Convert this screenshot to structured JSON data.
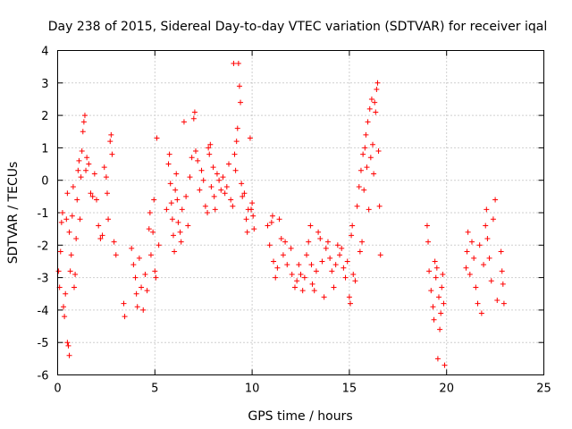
{
  "chart_data": {
    "type": "scatter",
    "title": "Day 238 of 2015, Sidereal Day-to-day VTEC variation (SDTVAR) for receiver iqal",
    "xlabel": "GPS time / hours",
    "ylabel": "SDTVAR / TECUs",
    "xlim": [
      0,
      25
    ],
    "ylim": [
      -6,
      4
    ],
    "xticks": [
      0,
      5,
      10,
      15,
      20,
      25
    ],
    "yticks": [
      -6,
      -5,
      -4,
      -3,
      -2,
      -1,
      0,
      1,
      2,
      3,
      4
    ],
    "grid": true,
    "marker": "+",
    "color": "#ff0000",
    "series": [
      {
        "name": "SDTVAR",
        "points": [
          [
            0.05,
            -2.8
          ],
          [
            0.1,
            -3.3
          ],
          [
            0.15,
            -2.2
          ],
          [
            0.2,
            -1.3
          ],
          [
            0.25,
            -1.0
          ],
          [
            0.3,
            -3.9
          ],
          [
            0.35,
            -4.2
          ],
          [
            0.4,
            -3.5
          ],
          [
            0.45,
            -1.2
          ],
          [
            0.5,
            -0.4
          ],
          [
            0.5,
            -5.0
          ],
          [
            0.55,
            -5.1
          ],
          [
            0.6,
            -5.4
          ],
          [
            0.6,
            -1.6
          ],
          [
            0.65,
            -2.8
          ],
          [
            0.7,
            -2.3
          ],
          [
            0.75,
            -1.1
          ],
          [
            0.8,
            -0.2
          ],
          [
            0.85,
            -3.3
          ],
          [
            0.9,
            -2.9
          ],
          [
            0.95,
            -1.8
          ],
          [
            1.0,
            -0.6
          ],
          [
            1.05,
            0.3
          ],
          [
            1.1,
            0.6
          ],
          [
            1.15,
            -1.2
          ],
          [
            1.2,
            0.1
          ],
          [
            1.25,
            0.9
          ],
          [
            1.3,
            1.5
          ],
          [
            1.35,
            1.8
          ],
          [
            1.4,
            2.0
          ],
          [
            1.45,
            0.3
          ],
          [
            1.5,
            0.7
          ],
          [
            1.6,
            0.5
          ],
          [
            1.7,
            -0.4
          ],
          [
            1.8,
            -0.5
          ],
          [
            1.9,
            0.2
          ],
          [
            2.0,
            -0.6
          ],
          [
            2.1,
            -1.4
          ],
          [
            2.2,
            -1.8
          ],
          [
            2.3,
            -1.7
          ],
          [
            2.4,
            0.4
          ],
          [
            2.5,
            0.1
          ],
          [
            2.55,
            -0.4
          ],
          [
            2.6,
            -1.2
          ],
          [
            2.7,
            1.2
          ],
          [
            2.75,
            1.4
          ],
          [
            2.8,
            0.8
          ],
          [
            2.9,
            -1.9
          ],
          [
            3.0,
            -2.3
          ],
          [
            3.4,
            -3.8
          ],
          [
            3.45,
            -4.2
          ],
          [
            3.8,
            -2.1
          ],
          [
            3.9,
            -2.6
          ],
          [
            4.0,
            -3.0
          ],
          [
            4.05,
            -3.5
          ],
          [
            4.1,
            -3.9
          ],
          [
            4.2,
            -2.4
          ],
          [
            4.3,
            -3.3
          ],
          [
            4.4,
            -4.0
          ],
          [
            4.5,
            -2.9
          ],
          [
            4.6,
            -3.4
          ],
          [
            4.7,
            -1.5
          ],
          [
            4.75,
            -1.0
          ],
          [
            4.8,
            -2.3
          ],
          [
            4.9,
            -1.6
          ],
          [
            4.95,
            -0.6
          ],
          [
            5.0,
            -2.8
          ],
          [
            5.05,
            -3.0
          ],
          [
            5.1,
            1.3
          ],
          [
            5.2,
            -2.0
          ],
          [
            5.6,
            -0.9
          ],
          [
            5.7,
            0.5
          ],
          [
            5.75,
            0.8
          ],
          [
            5.8,
            -0.1
          ],
          [
            5.85,
            -0.7
          ],
          [
            5.9,
            -1.2
          ],
          [
            5.95,
            -1.7
          ],
          [
            6.0,
            -2.2
          ],
          [
            6.05,
            -0.3
          ],
          [
            6.1,
            0.2
          ],
          [
            6.15,
            -0.6
          ],
          [
            6.2,
            -1.3
          ],
          [
            6.3,
            -1.6
          ],
          [
            6.35,
            -1.9
          ],
          [
            6.4,
            -0.9
          ],
          [
            6.5,
            1.8
          ],
          [
            6.6,
            -0.5
          ],
          [
            6.7,
            -1.4
          ],
          [
            6.8,
            0.1
          ],
          [
            6.9,
            0.7
          ],
          [
            7.0,
            1.9
          ],
          [
            7.05,
            2.1
          ],
          [
            7.1,
            0.9
          ],
          [
            7.2,
            0.6
          ],
          [
            7.3,
            -0.3
          ],
          [
            7.4,
            0.3
          ],
          [
            7.5,
            0.0
          ],
          [
            7.6,
            -0.8
          ],
          [
            7.7,
            -1.0
          ],
          [
            7.75,
            1.0
          ],
          [
            7.8,
            0.8
          ],
          [
            7.85,
            1.1
          ],
          [
            7.9,
            -0.2
          ],
          [
            8.0,
            0.4
          ],
          [
            8.05,
            -0.5
          ],
          [
            8.1,
            -0.9
          ],
          [
            8.2,
            0.2
          ],
          [
            8.3,
            0.0
          ],
          [
            8.4,
            -0.3
          ],
          [
            8.5,
            0.1
          ],
          [
            8.6,
            -0.4
          ],
          [
            8.7,
            -0.2
          ],
          [
            8.8,
            0.5
          ],
          [
            8.9,
            -0.6
          ],
          [
            9.0,
            -0.8
          ],
          [
            9.05,
            3.6
          ],
          [
            9.1,
            0.8
          ],
          [
            9.15,
            0.3
          ],
          [
            9.2,
            1.2
          ],
          [
            9.25,
            1.6
          ],
          [
            9.3,
            3.6
          ],
          [
            9.35,
            2.9
          ],
          [
            9.4,
            2.4
          ],
          [
            9.45,
            -0.1
          ],
          [
            9.5,
            -0.5
          ],
          [
            9.6,
            -0.4
          ],
          [
            9.7,
            -1.2
          ],
          [
            9.75,
            -1.6
          ],
          [
            9.8,
            -0.9
          ],
          [
            9.9,
            1.3
          ],
          [
            9.95,
            -0.9
          ],
          [
            10.0,
            -0.7
          ],
          [
            10.05,
            -1.1
          ],
          [
            10.1,
            -1.5
          ],
          [
            10.8,
            -1.4
          ],
          [
            10.9,
            -2.0
          ],
          [
            11.0,
            -1.3
          ],
          [
            11.05,
            -1.1
          ],
          [
            11.1,
            -2.5
          ],
          [
            11.2,
            -3.0
          ],
          [
            11.3,
            -2.7
          ],
          [
            11.4,
            -1.2
          ],
          [
            11.5,
            -1.8
          ],
          [
            11.6,
            -2.3
          ],
          [
            11.7,
            -1.9
          ],
          [
            11.8,
            -2.6
          ],
          [
            12.0,
            -2.1
          ],
          [
            12.05,
            -2.9
          ],
          [
            12.2,
            -3.3
          ],
          [
            12.3,
            -3.1
          ],
          [
            12.4,
            -2.6
          ],
          [
            12.5,
            -2.9
          ],
          [
            12.6,
            -3.4
          ],
          [
            12.7,
            -3.0
          ],
          [
            12.8,
            -2.3
          ],
          [
            12.9,
            -1.9
          ],
          [
            13.0,
            -1.4
          ],
          [
            13.05,
            -2.6
          ],
          [
            13.1,
            -3.2
          ],
          [
            13.2,
            -3.4
          ],
          [
            13.3,
            -2.8
          ],
          [
            13.4,
            -1.6
          ],
          [
            13.5,
            -1.8
          ],
          [
            13.6,
            -2.5
          ],
          [
            13.7,
            -3.6
          ],
          [
            13.8,
            -2.1
          ],
          [
            13.9,
            -1.9
          ],
          [
            14.0,
            -2.4
          ],
          [
            14.1,
            -2.8
          ],
          [
            14.2,
            -3.3
          ],
          [
            14.3,
            -2.6
          ],
          [
            14.4,
            -2.0
          ],
          [
            14.5,
            -2.3
          ],
          [
            14.6,
            -2.1
          ],
          [
            14.7,
            -2.7
          ],
          [
            14.8,
            -3.0
          ],
          [
            14.9,
            -2.5
          ],
          [
            15.0,
            -3.6
          ],
          [
            15.05,
            -3.8
          ],
          [
            15.1,
            -1.7
          ],
          [
            15.15,
            -1.4
          ],
          [
            15.2,
            -2.9
          ],
          [
            15.3,
            -3.1
          ],
          [
            15.4,
            -0.8
          ],
          [
            15.5,
            -0.2
          ],
          [
            15.55,
            -2.2
          ],
          [
            15.6,
            0.3
          ],
          [
            15.65,
            -1.9
          ],
          [
            15.7,
            0.8
          ],
          [
            15.75,
            -0.3
          ],
          [
            15.8,
            1.0
          ],
          [
            15.85,
            1.4
          ],
          [
            15.9,
            0.4
          ],
          [
            15.95,
            1.8
          ],
          [
            16.0,
            -0.9
          ],
          [
            16.05,
            2.2
          ],
          [
            16.1,
            0.7
          ],
          [
            16.15,
            2.5
          ],
          [
            16.2,
            1.1
          ],
          [
            16.25,
            0.2
          ],
          [
            16.3,
            2.4
          ],
          [
            16.35,
            2.1
          ],
          [
            16.4,
            2.8
          ],
          [
            16.45,
            3.0
          ],
          [
            16.5,
            0.9
          ],
          [
            16.55,
            -0.8
          ],
          [
            16.6,
            -2.3
          ],
          [
            19.0,
            -1.4
          ],
          [
            19.05,
            -1.9
          ],
          [
            19.1,
            -2.8
          ],
          [
            19.2,
            -3.4
          ],
          [
            19.3,
            -3.9
          ],
          [
            19.35,
            -4.3
          ],
          [
            19.4,
            -2.5
          ],
          [
            19.45,
            -3.0
          ],
          [
            19.5,
            -2.7
          ],
          [
            19.55,
            -5.5
          ],
          [
            19.6,
            -3.6
          ],
          [
            19.65,
            -4.6
          ],
          [
            19.7,
            -4.1
          ],
          [
            19.75,
            -3.3
          ],
          [
            19.8,
            -2.9
          ],
          [
            19.85,
            -3.8
          ],
          [
            19.9,
            -5.7
          ],
          [
            21.0,
            -2.7
          ],
          [
            21.05,
            -2.2
          ],
          [
            21.1,
            -1.6
          ],
          [
            21.2,
            -2.9
          ],
          [
            21.3,
            -1.9
          ],
          [
            21.4,
            -2.4
          ],
          [
            21.5,
            -3.3
          ],
          [
            21.6,
            -3.8
          ],
          [
            21.7,
            -2.0
          ],
          [
            21.8,
            -4.1
          ],
          [
            21.9,
            -2.6
          ],
          [
            22.0,
            -1.4
          ],
          [
            22.05,
            -0.9
          ],
          [
            22.1,
            -1.8
          ],
          [
            22.2,
            -2.4
          ],
          [
            22.3,
            -3.1
          ],
          [
            22.4,
            -1.2
          ],
          [
            22.5,
            -0.6
          ],
          [
            22.6,
            -3.7
          ],
          [
            22.8,
            -2.2
          ],
          [
            22.85,
            -2.8
          ],
          [
            22.9,
            -3.2
          ],
          [
            22.95,
            -3.8
          ]
        ]
      }
    ]
  }
}
